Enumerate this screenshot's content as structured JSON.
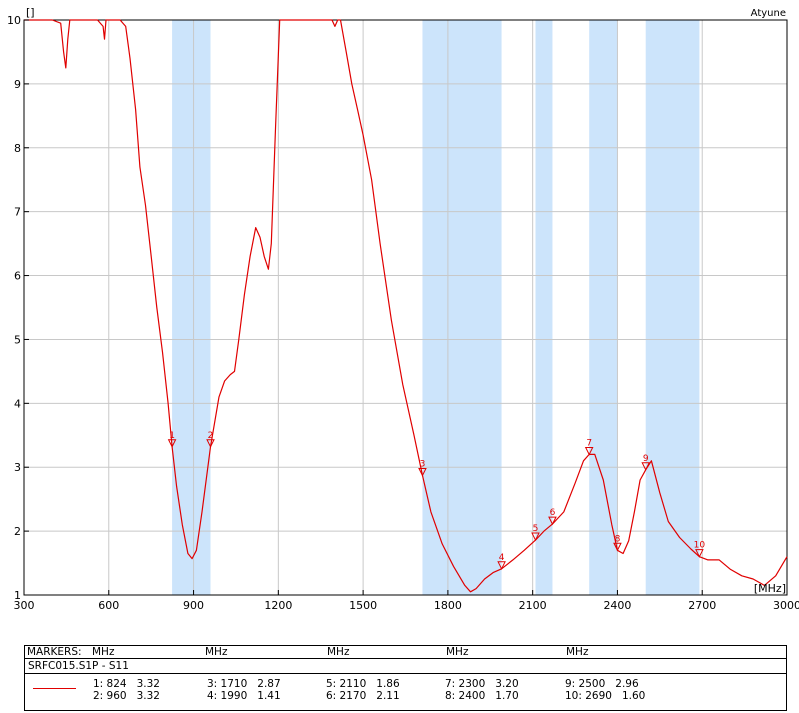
{
  "chart_data": {
    "type": "line",
    "title": "",
    "corner_label": "Atyune",
    "ylabel": "[]",
    "xlabel": "[MHz]",
    "xlim": [
      300,
      3000
    ],
    "ylim": [
      1,
      10
    ],
    "grid": true,
    "x_ticks": [
      "300",
      "600",
      "900",
      "1200",
      "1500",
      "1800",
      "2100",
      "2400",
      "2700",
      "3000"
    ],
    "y_ticks": [
      "1",
      "2",
      "3",
      "4",
      "5",
      "6",
      "7",
      "8",
      "9",
      "10"
    ],
    "bands": [
      [
        824,
        960
      ],
      [
        1710,
        1990
      ],
      [
        2110,
        2170
      ],
      [
        2300,
        2400
      ],
      [
        2500,
        2690
      ]
    ],
    "series": [
      {
        "name": "SRFC015.S1P - S11",
        "color": "#e00000",
        "points": [
          [
            300,
            10
          ],
          [
            400,
            10
          ],
          [
            430,
            9.95
          ],
          [
            440,
            9.5
          ],
          [
            448,
            9.25
          ],
          [
            455,
            9.7
          ],
          [
            462,
            10
          ],
          [
            560,
            10
          ],
          [
            580,
            9.9
          ],
          [
            585,
            9.7
          ],
          [
            590,
            10
          ],
          [
            620,
            10
          ],
          [
            640,
            10
          ],
          [
            660,
            9.9
          ],
          [
            675,
            9.4
          ],
          [
            695,
            8.6
          ],
          [
            710,
            7.7
          ],
          [
            730,
            7.1
          ],
          [
            750,
            6.3
          ],
          [
            770,
            5.5
          ],
          [
            790,
            4.8
          ],
          [
            810,
            4.0
          ],
          [
            824,
            3.32
          ],
          [
            840,
            2.7
          ],
          [
            860,
            2.1
          ],
          [
            880,
            1.65
          ],
          [
            895,
            1.57
          ],
          [
            910,
            1.7
          ],
          [
            930,
            2.3
          ],
          [
            960,
            3.32
          ],
          [
            990,
            4.1
          ],
          [
            1010,
            4.35
          ],
          [
            1030,
            4.45
          ],
          [
            1045,
            4.5
          ],
          [
            1060,
            5.0
          ],
          [
            1080,
            5.7
          ],
          [
            1100,
            6.3
          ],
          [
            1120,
            6.75
          ],
          [
            1135,
            6.6
          ],
          [
            1150,
            6.3
          ],
          [
            1165,
            6.1
          ],
          [
            1175,
            6.5
          ],
          [
            1190,
            8.3
          ],
          [
            1205,
            10
          ],
          [
            1390,
            10
          ],
          [
            1400,
            9.9
          ],
          [
            1410,
            10
          ],
          [
            1420,
            10
          ],
          [
            1440,
            9.5
          ],
          [
            1460,
            9.0
          ],
          [
            1480,
            8.6
          ],
          [
            1500,
            8.2
          ],
          [
            1530,
            7.5
          ],
          [
            1560,
            6.5
          ],
          [
            1600,
            5.3
          ],
          [
            1640,
            4.3
          ],
          [
            1680,
            3.5
          ],
          [
            1710,
            2.87
          ],
          [
            1740,
            2.3
          ],
          [
            1780,
            1.8
          ],
          [
            1820,
            1.45
          ],
          [
            1860,
            1.15
          ],
          [
            1880,
            1.05
          ],
          [
            1900,
            1.1
          ],
          [
            1930,
            1.25
          ],
          [
            1960,
            1.35
          ],
          [
            1990,
            1.41
          ],
          [
            2030,
            1.55
          ],
          [
            2070,
            1.7
          ],
          [
            2110,
            1.86
          ],
          [
            2140,
            2.0
          ],
          [
            2170,
            2.11
          ],
          [
            2210,
            2.3
          ],
          [
            2250,
            2.75
          ],
          [
            2280,
            3.1
          ],
          [
            2300,
            3.2
          ],
          [
            2320,
            3.2
          ],
          [
            2350,
            2.8
          ],
          [
            2380,
            2.1
          ],
          [
            2400,
            1.7
          ],
          [
            2420,
            1.65
          ],
          [
            2440,
            1.85
          ],
          [
            2460,
            2.3
          ],
          [
            2480,
            2.8
          ],
          [
            2500,
            2.96
          ],
          [
            2520,
            3.1
          ],
          [
            2550,
            2.6
          ],
          [
            2580,
            2.15
          ],
          [
            2620,
            1.9
          ],
          [
            2660,
            1.72
          ],
          [
            2690,
            1.6
          ],
          [
            2720,
            1.55
          ],
          [
            2760,
            1.55
          ],
          [
            2800,
            1.4
          ],
          [
            2840,
            1.3
          ],
          [
            2880,
            1.25
          ],
          [
            2920,
            1.15
          ],
          [
            2960,
            1.3
          ],
          [
            3000,
            1.6
          ]
        ]
      }
    ],
    "markers": [
      {
        "id": "1",
        "freq": 824,
        "value": 3.32
      },
      {
        "id": "2",
        "freq": 960,
        "value": 3.32
      },
      {
        "id": "3",
        "freq": 1710,
        "value": 2.87
      },
      {
        "id": "4",
        "freq": 1990,
        "value": 1.41
      },
      {
        "id": "5",
        "freq": 2110,
        "value": 1.86
      },
      {
        "id": "6",
        "freq": 2170,
        "value": 2.11
      },
      {
        "id": "7",
        "freq": 2300,
        "value": 3.2
      },
      {
        "id": "8",
        "freq": 2400,
        "value": 1.7
      },
      {
        "id": "9",
        "freq": 2500,
        "value": 2.96
      },
      {
        "id": "10",
        "freq": 2690,
        "value": 1.6
      }
    ],
    "colors": {
      "band": "#cce4fb",
      "trace": "#e00000",
      "grid": "#c8c8c8"
    }
  },
  "markers_table": {
    "header_label": "MARKERS:",
    "unit_headers": [
      "MHz",
      "MHz",
      "MHz",
      "MHz",
      "MHz"
    ],
    "file_label": "SRFC015.S1P - S11",
    "entries": [
      "1: 824   3.32",
      "2: 960   3.32",
      "3: 1710   2.87",
      "4: 1990   1.41",
      "5: 2110   1.86",
      "6: 2170   2.11",
      "7: 2300   3.20",
      "8: 2400   1.70",
      "9: 2500   2.96",
      "10: 2690   1.60"
    ]
  }
}
